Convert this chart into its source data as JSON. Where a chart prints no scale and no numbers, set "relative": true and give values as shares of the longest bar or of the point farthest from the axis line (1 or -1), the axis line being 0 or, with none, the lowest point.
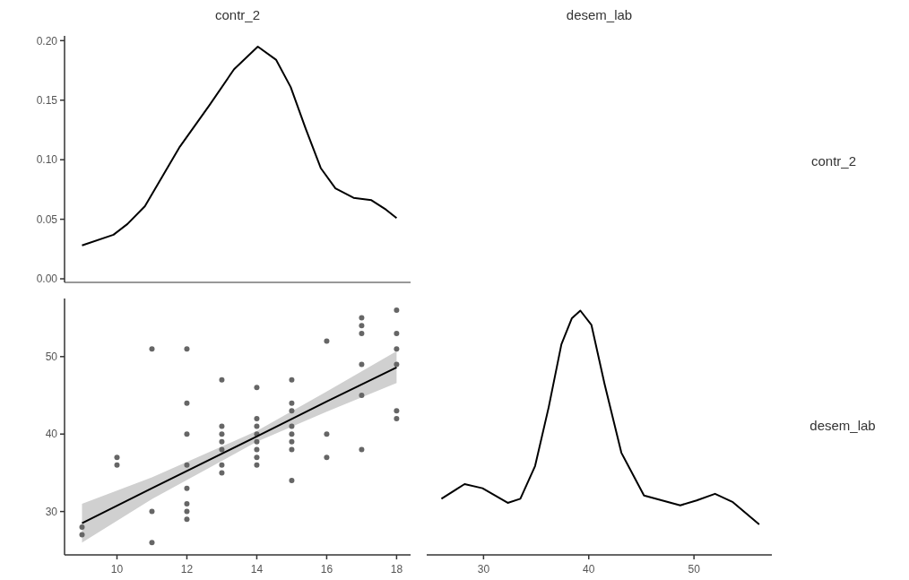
{
  "chart_data": [
    {
      "type": "line",
      "title": "contr_2",
      "y2label": "contr_2",
      "xlim": [
        8.5,
        18.4
      ],
      "ylim": [
        -0.003,
        0.204
      ],
      "yticks": [
        {
          "value": 0,
          "label": "0.00"
        },
        {
          "value": 0.05,
          "label": "0.05"
        },
        {
          "value": 0.1,
          "label": "0.10"
        },
        {
          "value": 0.15,
          "label": "0.15"
        },
        {
          "value": 0.2,
          "label": "0.20"
        }
      ],
      "tick_labels": "y",
      "series": [
        {
          "color": "#000000",
          "x": [
            9,
            9.9,
            10.3,
            10.8,
            11.3,
            11.8,
            12.65,
            13.35,
            14.03,
            14.55,
            14.97,
            15.4,
            15.83,
            16.25,
            16.77,
            17.28,
            17.7,
            18
          ],
          "values": [
            0.028,
            0.037,
            0.046,
            0.061,
            0.086,
            0.111,
            0.146,
            0.176,
            0.195,
            0.184,
            0.161,
            0.126,
            0.093,
            0.076,
            0.068,
            0.066,
            0.058,
            0.051
          ]
        }
      ]
    },
    {
      "type": "scatter",
      "xlim": [
        8.5,
        18.4
      ],
      "ylim": [
        24.4,
        57.5
      ],
      "xticks": [
        10,
        12,
        14,
        16,
        18
      ],
      "yticks": [
        30,
        40,
        50
      ],
      "series": [
        {
          "color": "#666666",
          "marker": "circle",
          "x": [
            9,
            9,
            10,
            10,
            11,
            11,
            11,
            12,
            12,
            12,
            12,
            12,
            12,
            12,
            12,
            13,
            13,
            13,
            13,
            13,
            13,
            13,
            14,
            14,
            14,
            14,
            14,
            14,
            14,
            14,
            15,
            15,
            15,
            15,
            15,
            15,
            15,
            15,
            16,
            16,
            16,
            17,
            17,
            17,
            17,
            17,
            17,
            18,
            18,
            18,
            18,
            18,
            18
          ],
          "values": [
            28,
            27,
            37,
            36,
            51,
            30,
            26,
            51,
            44,
            40,
            36,
            33,
            31,
            30,
            29,
            47,
            41,
            40,
            39,
            38,
            36,
            35,
            46,
            42,
            41,
            40,
            39,
            38,
            37,
            36,
            47,
            44,
            43,
            41,
            40,
            39,
            38,
            34,
            52,
            40,
            37,
            55,
            54,
            53,
            49,
            45,
            38,
            56,
            53,
            51,
            49,
            43,
            42
          ]
        },
        {
          "type": "line",
          "color": "#000000",
          "x": [
            9,
            11,
            14,
            16,
            18
          ],
          "values": [
            28.5,
            33.0,
            39.7,
            44.2,
            48.6
          ],
          "lower": [
            26.0,
            31.6,
            39.0,
            42.9,
            46.6
          ],
          "upper": [
            31.0,
            34.4,
            40.4,
            45.5,
            50.7
          ]
        }
      ]
    },
    {
      "type": "line",
      "title": "desem_lab",
      "y2label": "desem_lab",
      "relative": true,
      "xlim": [
        24.6,
        57.4
      ],
      "xticks": [
        30,
        40,
        50
      ],
      "tick_labels": "x",
      "series": [
        {
          "color": "#000000",
          "x": [
            26.0,
            28.2,
            29.9,
            32.3,
            33.5,
            34.9,
            36.2,
            37.4,
            38.4,
            39.2,
            40.25,
            41.5,
            43.1,
            45.25,
            48.7,
            50.25,
            52.0,
            53.7,
            56.2
          ],
          "values": [
            0.23,
            0.29,
            0.273,
            0.213,
            0.23,
            0.364,
            0.606,
            0.862,
            0.969,
            1,
            0.942,
            0.7,
            0.418,
            0.243,
            0.203,
            0.223,
            0.25,
            0.216,
            0.125
          ]
        }
      ]
    }
  ]
}
